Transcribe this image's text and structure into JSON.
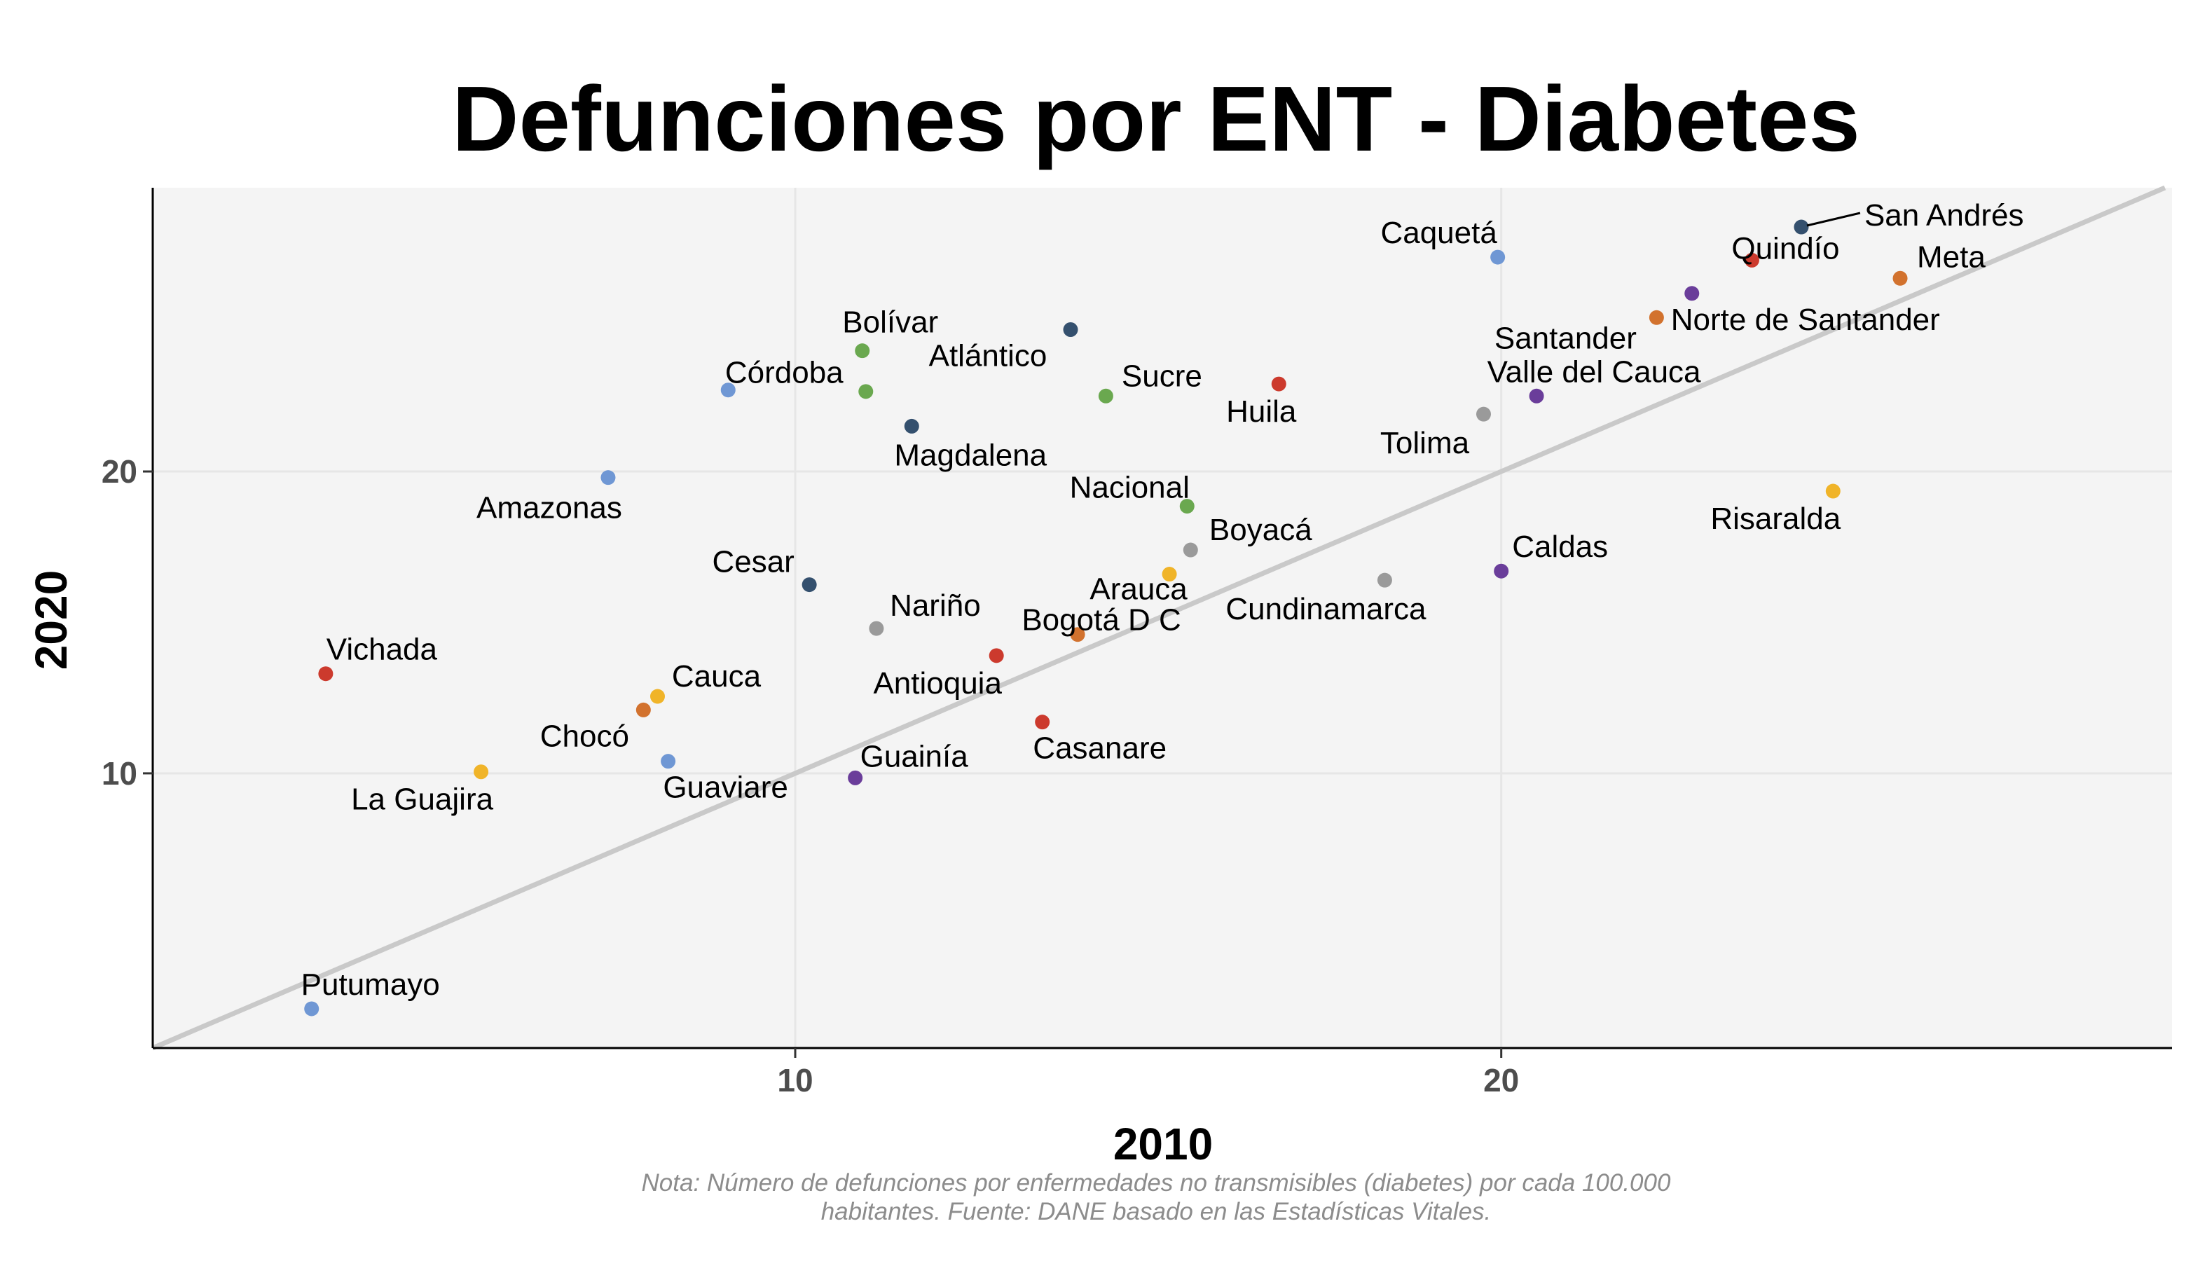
{
  "chart_data": {
    "type": "scatter",
    "title": "Defunciones por ENT - Diabetes",
    "xlabel": "2010",
    "ylabel": "2020",
    "xlim": [
      0.9,
      29.5
    ],
    "ylim": [
      0.9,
      29.4
    ],
    "xticks": [
      10,
      20
    ],
    "yticks": [
      10,
      20
    ],
    "grid": true,
    "reference_line": "y = x",
    "note": [
      "Nota: Número de defunciones por enfermedades no transmisibles (diabetes) por cada 100.000",
      "habitantes. Fuente: DANE basado en las Estadísticas Vitales."
    ],
    "colors": {
      "blue": "#6f97d4",
      "navy": "#34506e",
      "green": "#6aa84f",
      "red": "#cc3a2d",
      "orange": "#d2722e",
      "purple": "#6a3d9a",
      "gray": "#9a9a9a",
      "yellow": "#f0b429",
      "panel": "#f4f4f4",
      "grid": "#e6e6e6",
      "refline": "#c9c9c9"
    },
    "points": [
      {
        "label": "San Andrés",
        "x": 24.25,
        "y": 28.1,
        "color": "navy"
      },
      {
        "label": "Caquetá",
        "x": 19.95,
        "y": 27.1,
        "color": "blue"
      },
      {
        "label": "Quindío",
        "x": 23.55,
        "y": 27.0,
        "color": "red"
      },
      {
        "label": "Meta",
        "x": 25.65,
        "y": 26.4,
        "color": "orange"
      },
      {
        "label": "Norte de Santander",
        "x": 22.7,
        "y": 25.9,
        "color": "purple"
      },
      {
        "label": "Santander",
        "x": 22.2,
        "y": 25.1,
        "color": "orange"
      },
      {
        "label": "Atlántico",
        "x": 13.9,
        "y": 24.7,
        "color": "navy"
      },
      {
        "label": "Bolívar",
        "x": 10.95,
        "y": 24.0,
        "color": "green"
      },
      {
        "label": "Huila",
        "x": 16.85,
        "y": 22.9,
        "color": "red"
      },
      {
        "label": "Córdoba",
        "x": 9.05,
        "y": 22.7,
        "color": "blue"
      },
      {
        "label": "Sucre",
        "x": 14.4,
        "y": 22.5,
        "color": "green"
      },
      {
        "label": "Valle del Cauca",
        "x": 20.5,
        "y": 22.5,
        "color": "purple"
      },
      {
        "label": "",
        "x": 11.0,
        "y": 22.65,
        "color": "green"
      },
      {
        "label": "Tolima",
        "x": 19.75,
        "y": 21.9,
        "color": "gray"
      },
      {
        "label": "Magdalena",
        "x": 11.65,
        "y": 21.5,
        "color": "navy"
      },
      {
        "label": "Amazonas",
        "x": 7.35,
        "y": 19.8,
        "color": "blue"
      },
      {
        "label": "Nacional",
        "x": 15.55,
        "y": 18.85,
        "color": "green"
      },
      {
        "label": "Risaralda",
        "x": 24.7,
        "y": 19.35,
        "color": "yellow"
      },
      {
        "label": "Boyacá",
        "x": 15.6,
        "y": 17.4,
        "color": "gray"
      },
      {
        "label": "Caldas",
        "x": 20.0,
        "y": 16.7,
        "color": "purple"
      },
      {
        "label": "Arauca",
        "x": 15.3,
        "y": 16.6,
        "color": "yellow"
      },
      {
        "label": "Cundinamarca",
        "x": 18.35,
        "y": 16.4,
        "color": "gray"
      },
      {
        "label": "Cesar",
        "x": 10.2,
        "y": 16.25,
        "color": "navy"
      },
      {
        "label": "Nariño",
        "x": 11.15,
        "y": 14.8,
        "color": "gray"
      },
      {
        "label": "Bogotá D C",
        "x": 14.0,
        "y": 14.6,
        "color": "orange"
      },
      {
        "label": "Antioquia",
        "x": 12.85,
        "y": 13.9,
        "color": "red"
      },
      {
        "label": "Vichada",
        "x": 3.35,
        "y": 13.3,
        "color": "red"
      },
      {
        "label": "Cauca",
        "x": 8.05,
        "y": 12.55,
        "color": "yellow"
      },
      {
        "label": "Chocó",
        "x": 7.85,
        "y": 12.1,
        "color": "orange"
      },
      {
        "label": "Casanare",
        "x": 13.5,
        "y": 11.7,
        "color": "red"
      },
      {
        "label": "Guaviare",
        "x": 8.2,
        "y": 10.4,
        "color": "blue"
      },
      {
        "label": "La Guajira",
        "x": 5.55,
        "y": 10.05,
        "color": "yellow"
      },
      {
        "label": "Guainía",
        "x": 10.85,
        "y": 9.85,
        "color": "purple"
      },
      {
        "label": "Putumayo",
        "x": 3.15,
        "y": 2.2,
        "color": "blue"
      }
    ]
  }
}
